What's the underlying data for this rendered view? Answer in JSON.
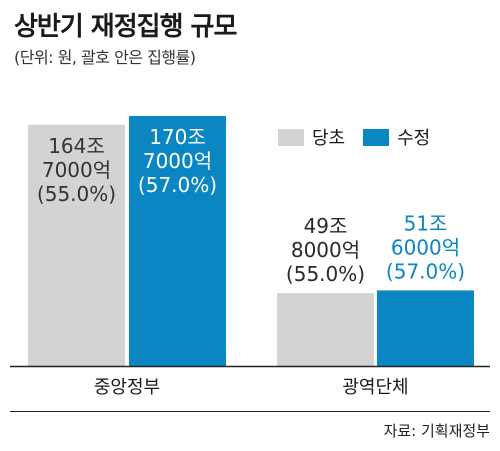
{
  "title": "상반기 재정집행 규모",
  "subtitle": "(단위: 원, 괄호 안은 집행률)",
  "source": "자료: 기획재정부",
  "colors": {
    "initial": "#d3d3d3",
    "revised": "#0a86c3",
    "axis": "#222222"
  },
  "chart_data": {
    "type": "bar",
    "categories": [
      "중앙정부",
      "광역단체"
    ],
    "series": [
      {
        "name": "당초",
        "values": [
          164.7,
          49.8
        ],
        "rates": [
          55.0,
          55.0
        ],
        "labels": [
          [
            "164조",
            "7000억",
            "(55.0%)"
          ],
          [
            "49조",
            "8000억",
            "(55.0%)"
          ]
        ]
      },
      {
        "name": "수정",
        "values": [
          170.7,
          51.6
        ],
        "rates": [
          57.0,
          57.0
        ],
        "labels": [
          [
            "170조",
            "7000억",
            "(57.0%)"
          ],
          [
            "51조",
            "6000억",
            "(57.0%)"
          ]
        ]
      }
    ],
    "unit": "조원",
    "legend": "top-right",
    "grid": false
  }
}
